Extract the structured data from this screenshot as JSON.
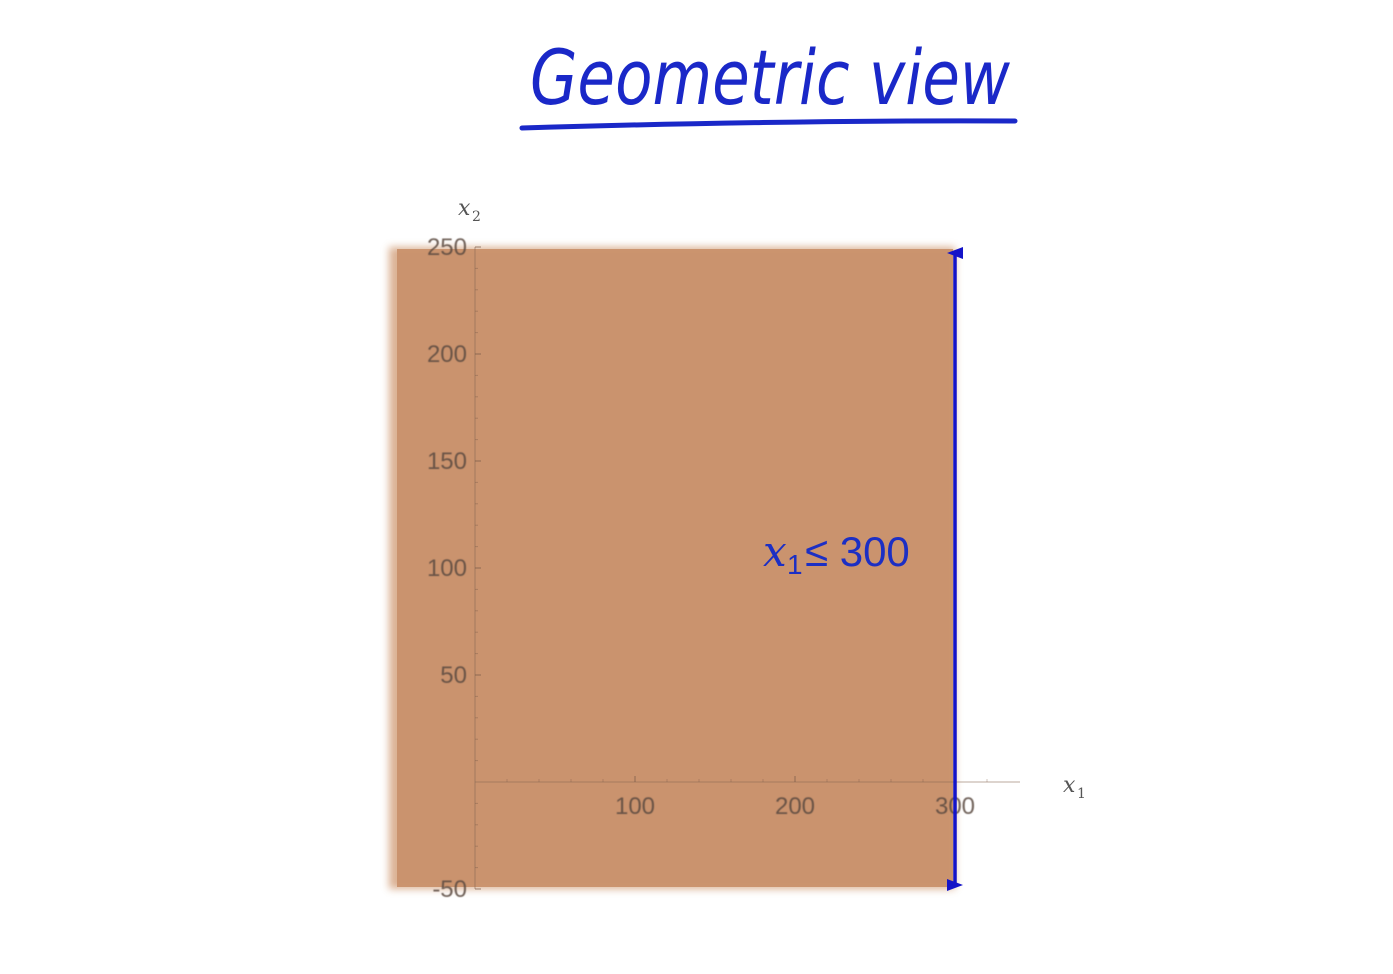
{
  "header": {
    "title": "Geometric view",
    "underline_color": "#1a28c8"
  },
  "chart_data": {
    "type": "area",
    "title": "",
    "xlabel": "x",
    "xlabel_sub": "1",
    "ylabel": "x",
    "ylabel_sub": "2",
    "xlim": [
      -50,
      300
    ],
    "ylim": [
      -50,
      250
    ],
    "x_ticks": [
      100,
      200,
      300
    ],
    "x_tick_labels": [
      "100",
      "200",
      "300"
    ],
    "y_ticks": [
      -50,
      50,
      100,
      150,
      200,
      250
    ],
    "y_tick_labels": [
      "-50",
      "50",
      "100",
      "150",
      "200",
      "250"
    ],
    "feasible_region": {
      "x_min": -50,
      "x_max": 300,
      "y_min": -50,
      "y_max": 250,
      "color": "#cf9870"
    },
    "constraint": {
      "label_var": "x",
      "label_sub": "1",
      "label_rest": " ≤ 300",
      "x_value": 300,
      "color": "#1414c8"
    },
    "grid": false,
    "legend": "none"
  }
}
